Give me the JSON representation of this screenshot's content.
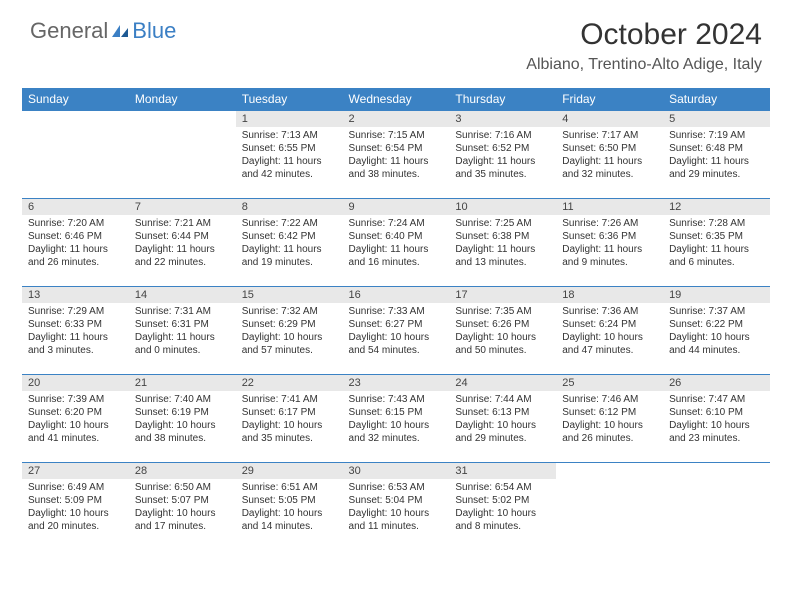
{
  "logo": {
    "general": "General",
    "blue": "Blue"
  },
  "title": "October 2024",
  "location": "Albiano, Trentino-Alto Adige, Italy",
  "colors": {
    "header_bg": "#3b82c4",
    "header_text": "#ffffff",
    "daynum_bg": "#e8e8e8",
    "border": "#3b82c4",
    "logo_gray": "#666666",
    "logo_blue": "#3b7fc4"
  },
  "weekdays": [
    "Sunday",
    "Monday",
    "Tuesday",
    "Wednesday",
    "Thursday",
    "Friday",
    "Saturday"
  ],
  "weeks": [
    [
      null,
      null,
      {
        "d": "1",
        "sr": "7:13 AM",
        "ss": "6:55 PM",
        "dl": "11 hours and 42 minutes."
      },
      {
        "d": "2",
        "sr": "7:15 AM",
        "ss": "6:54 PM",
        "dl": "11 hours and 38 minutes."
      },
      {
        "d": "3",
        "sr": "7:16 AM",
        "ss": "6:52 PM",
        "dl": "11 hours and 35 minutes."
      },
      {
        "d": "4",
        "sr": "7:17 AM",
        "ss": "6:50 PM",
        "dl": "11 hours and 32 minutes."
      },
      {
        "d": "5",
        "sr": "7:19 AM",
        "ss": "6:48 PM",
        "dl": "11 hours and 29 minutes."
      }
    ],
    [
      {
        "d": "6",
        "sr": "7:20 AM",
        "ss": "6:46 PM",
        "dl": "11 hours and 26 minutes."
      },
      {
        "d": "7",
        "sr": "7:21 AM",
        "ss": "6:44 PM",
        "dl": "11 hours and 22 minutes."
      },
      {
        "d": "8",
        "sr": "7:22 AM",
        "ss": "6:42 PM",
        "dl": "11 hours and 19 minutes."
      },
      {
        "d": "9",
        "sr": "7:24 AM",
        "ss": "6:40 PM",
        "dl": "11 hours and 16 minutes."
      },
      {
        "d": "10",
        "sr": "7:25 AM",
        "ss": "6:38 PM",
        "dl": "11 hours and 13 minutes."
      },
      {
        "d": "11",
        "sr": "7:26 AM",
        "ss": "6:36 PM",
        "dl": "11 hours and 9 minutes."
      },
      {
        "d": "12",
        "sr": "7:28 AM",
        "ss": "6:35 PM",
        "dl": "11 hours and 6 minutes."
      }
    ],
    [
      {
        "d": "13",
        "sr": "7:29 AM",
        "ss": "6:33 PM",
        "dl": "11 hours and 3 minutes."
      },
      {
        "d": "14",
        "sr": "7:31 AM",
        "ss": "6:31 PM",
        "dl": "11 hours and 0 minutes."
      },
      {
        "d": "15",
        "sr": "7:32 AM",
        "ss": "6:29 PM",
        "dl": "10 hours and 57 minutes."
      },
      {
        "d": "16",
        "sr": "7:33 AM",
        "ss": "6:27 PM",
        "dl": "10 hours and 54 minutes."
      },
      {
        "d": "17",
        "sr": "7:35 AM",
        "ss": "6:26 PM",
        "dl": "10 hours and 50 minutes."
      },
      {
        "d": "18",
        "sr": "7:36 AM",
        "ss": "6:24 PM",
        "dl": "10 hours and 47 minutes."
      },
      {
        "d": "19",
        "sr": "7:37 AM",
        "ss": "6:22 PM",
        "dl": "10 hours and 44 minutes."
      }
    ],
    [
      {
        "d": "20",
        "sr": "7:39 AM",
        "ss": "6:20 PM",
        "dl": "10 hours and 41 minutes."
      },
      {
        "d": "21",
        "sr": "7:40 AM",
        "ss": "6:19 PM",
        "dl": "10 hours and 38 minutes."
      },
      {
        "d": "22",
        "sr": "7:41 AM",
        "ss": "6:17 PM",
        "dl": "10 hours and 35 minutes."
      },
      {
        "d": "23",
        "sr": "7:43 AM",
        "ss": "6:15 PM",
        "dl": "10 hours and 32 minutes."
      },
      {
        "d": "24",
        "sr": "7:44 AM",
        "ss": "6:13 PM",
        "dl": "10 hours and 29 minutes."
      },
      {
        "d": "25",
        "sr": "7:46 AM",
        "ss": "6:12 PM",
        "dl": "10 hours and 26 minutes."
      },
      {
        "d": "26",
        "sr": "7:47 AM",
        "ss": "6:10 PM",
        "dl": "10 hours and 23 minutes."
      }
    ],
    [
      {
        "d": "27",
        "sr": "6:49 AM",
        "ss": "5:09 PM",
        "dl": "10 hours and 20 minutes."
      },
      {
        "d": "28",
        "sr": "6:50 AM",
        "ss": "5:07 PM",
        "dl": "10 hours and 17 minutes."
      },
      {
        "d": "29",
        "sr": "6:51 AM",
        "ss": "5:05 PM",
        "dl": "10 hours and 14 minutes."
      },
      {
        "d": "30",
        "sr": "6:53 AM",
        "ss": "5:04 PM",
        "dl": "10 hours and 11 minutes."
      },
      {
        "d": "31",
        "sr": "6:54 AM",
        "ss": "5:02 PM",
        "dl": "10 hours and 8 minutes."
      },
      null,
      null
    ]
  ],
  "labels": {
    "sunrise": "Sunrise: ",
    "sunset": "Sunset: ",
    "daylight": "Daylight: "
  }
}
